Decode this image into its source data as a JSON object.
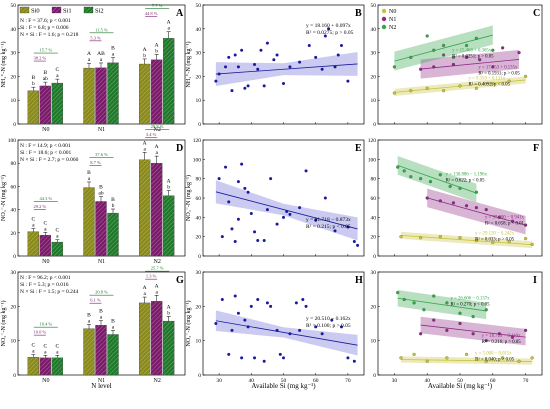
{
  "colors": {
    "Si0": "#8a8a1a",
    "Si1": "#7b1a6a",
    "Si2": "#1e7a2a",
    "blue": "#1a1aa0",
    "blueBand": "#b9b9ec",
    "N0": "#c8c23a",
    "N1": "#8e2a86",
    "N2": "#35a64a",
    "frame": "#000000"
  },
  "chart_data": [
    {
      "id": "A",
      "type": "bar",
      "panel": "A",
      "categories": [
        "N0",
        "N1",
        "N2"
      ],
      "series": [
        {
          "name": "Si0",
          "values": [
            14,
            23.5,
            25.2
          ]
        },
        {
          "name": "Si1",
          "values": [
            16,
            23.6,
            27
          ]
        },
        {
          "name": "Si2",
          "values": [
            17.2,
            25.7,
            36
          ]
        }
      ],
      "ylabel": "NH₄⁺-N (mg kg⁻¹)",
      "ylim": [
        0,
        50
      ],
      "yticks": [
        "0",
        "10",
        "20",
        "30",
        "40",
        "50"
      ],
      "stats": [
        "N : F = 37.6; p < 0.001",
        "Si : F = 6.8; p = 0.006",
        "N × Si : F = 1.6; p = 0.218"
      ],
      "letters": [
        [
          "B\nb",
          "B\nab",
          "C\na"
        ],
        [
          "A\na",
          "AB\na",
          "B\na"
        ],
        [
          "A\nb",
          "A\nb",
          "A\na"
        ]
      ],
      "pct": [
        "38.2 %",
        "15.7 %",
        "5.3 %",
        "11.5 %",
        "44.8 %",
        "7.7 %"
      ]
    },
    {
      "id": "D",
      "type": "bar",
      "panel": "D",
      "categories": [
        "N0",
        "N1",
        "N2"
      ],
      "series": [
        {
          "name": "Si0",
          "values": [
            21,
            59,
            83
          ]
        },
        {
          "name": "Si1",
          "values": [
            18,
            47,
            80
          ]
        },
        {
          "name": "Si2",
          "values": [
            12,
            37,
            52
          ]
        }
      ],
      "ylabel": "NO₃⁻-N (mg kg⁻¹)",
      "ylim": [
        0,
        100
      ],
      "yticks": [
        "0",
        "20",
        "40",
        "60",
        "80",
        "100"
      ],
      "stats": [
        "N : F = 14.9; p < 0.001",
        "Si : F = 18.6; p < 0.001",
        "N × Si : F = 2.7; p = 0.060"
      ],
      "letters": [
        [
          "C\na",
          "C\na",
          "C\na"
        ],
        [
          "B\na",
          "B\nab",
          "B\nb"
        ],
        [
          "A\na",
          "A\na",
          "A\nb"
        ]
      ],
      "pct": [
        "29.2 %",
        "44.3 %",
        "8.7 %",
        "37.6 %",
        "3.4 %",
        "29.8 %"
      ]
    },
    {
      "id": "G",
      "type": "bar",
      "panel": "G",
      "categories": [
        "N0",
        "N1",
        "N2"
      ],
      "series": [
        {
          "name": "Si0",
          "values": [
            5.2,
            13.5,
            21
          ]
        },
        {
          "name": "Si1",
          "values": [
            5.0,
            14.5,
            21.5
          ]
        },
        {
          "name": "Si2",
          "values": [
            5.0,
            11.8,
            15.7
          ]
        }
      ],
      "ylabel": "NO₂⁻-N (mg kg⁻¹)",
      "ylim": [
        0,
        30
      ],
      "yticks": [
        "0",
        "10",
        "20",
        "30"
      ],
      "stats": [
        "N : F = 96.2; p < 0.001",
        "Si : F = 5.3; p = 0.016",
        "N × Si : F = 1.5; p = 0.244"
      ],
      "letters": [
        [
          "C\na",
          "C\na",
          "C\na"
        ],
        [
          "B\na",
          "B\na",
          "B\na"
        ],
        [
          "A\na",
          "A\na",
          "A\nb"
        ]
      ],
      "pct": [
        "10.0 %",
        "10.4 %",
        "6.1 %",
        "20.8 %",
        "1.3 %",
        "25.7 %"
      ]
    },
    {
      "id": "B",
      "type": "scatter",
      "panel": "B",
      "xlim": [
        25,
        75
      ],
      "ylim": [
        0,
        50
      ],
      "xticks": [
        "30",
        "40",
        "50",
        "60",
        "70"
      ],
      "yticks": [
        "0",
        "10",
        "20",
        "30",
        "40",
        "50"
      ],
      "ylabel": "NH₄⁺-N (mg kg⁻¹)",
      "eq": "y = 18.160 + 0.097x",
      "r2": "R² = 0.0275; p > 0.05",
      "line": [
        18.16,
        0.097
      ],
      "points": [
        [
          29,
          18
        ],
        [
          30,
          21
        ],
        [
          32,
          24
        ],
        [
          33,
          28
        ],
        [
          34,
          14
        ],
        [
          35,
          29
        ],
        [
          36,
          24
        ],
        [
          37,
          31
        ],
        [
          38,
          15
        ],
        [
          39,
          16
        ],
        [
          41,
          25
        ],
        [
          42,
          23
        ],
        [
          43,
          31
        ],
        [
          44,
          16
        ],
        [
          45,
          34
        ],
        [
          47,
          27
        ],
        [
          48,
          29
        ],
        [
          50,
          17
        ],
        [
          52,
          24
        ],
        [
          55,
          26
        ],
        [
          58,
          33
        ],
        [
          60,
          28
        ],
        [
          62,
          23
        ],
        [
          63,
          37
        ],
        [
          64,
          40
        ],
        [
          66,
          24
        ],
        [
          67,
          29
        ],
        [
          68,
          33
        ],
        [
          70,
          18
        ]
      ]
    },
    {
      "id": "E",
      "type": "scatter",
      "panel": "E",
      "xlim": [
        25,
        75
      ],
      "ylim": [
        0,
        120
      ],
      "xticks": [
        "30",
        "40",
        "50",
        "60",
        "70"
      ],
      "yticks": [
        "0",
        "20",
        "40",
        "60",
        "80",
        "100",
        "120"
      ],
      "ylabel": "NO₃⁻-N (mg kg⁻¹)",
      "eq": "y = 91.718 − 0.873x",
      "r2": "R² = 0.215; p < 0.05",
      "line": [
        91.718,
        -0.873
      ],
      "points": [
        [
          30,
          80
        ],
        [
          31,
          20
        ],
        [
          32,
          92
        ],
        [
          33,
          56
        ],
        [
          34,
          28
        ],
        [
          35,
          15
        ],
        [
          36,
          77
        ],
        [
          37,
          95
        ],
        [
          38,
          70
        ],
        [
          39,
          66
        ],
        [
          40,
          44
        ],
        [
          41,
          25
        ],
        [
          42,
          16
        ],
        [
          44,
          16
        ],
        [
          45,
          48
        ],
        [
          46,
          80
        ],
        [
          48,
          33
        ],
        [
          50,
          40
        ],
        [
          51,
          46
        ],
        [
          52,
          43
        ],
        [
          55,
          50
        ],
        [
          57,
          88
        ],
        [
          60,
          37
        ],
        [
          63,
          60
        ],
        [
          66,
          26
        ],
        [
          70,
          30
        ],
        [
          72,
          15
        ],
        [
          73,
          11
        ],
        [
          36,
          38
        ]
      ]
    },
    {
      "id": "H",
      "type": "scatter",
      "panel": "H",
      "xlim": [
        25,
        75
      ],
      "ylim": [
        0,
        30
      ],
      "xticks": [
        "30",
        "40",
        "50",
        "60",
        "70"
      ],
      "yticks": [
        "0",
        "10",
        "20",
        "30"
      ],
      "ylabel": "NO₂⁻-N (mg kg⁻¹)",
      "xlabel": "Available Si (mg kg⁻¹)",
      "eq": "y = 20.510 − 0.162x",
      "r2": "R² = 0.100; p > 0.05",
      "line": [
        20.51,
        -0.162
      ],
      "points": [
        [
          29,
          15
        ],
        [
          31,
          22
        ],
        [
          33,
          6
        ],
        [
          34,
          13
        ],
        [
          35,
          23
        ],
        [
          36,
          18
        ],
        [
          37,
          5
        ],
        [
          38,
          16
        ],
        [
          39,
          14
        ],
        [
          40,
          20
        ],
        [
          41,
          5
        ],
        [
          42,
          22
        ],
        [
          44,
          4
        ],
        [
          45,
          21
        ],
        [
          46,
          20
        ],
        [
          48,
          13
        ],
        [
          49,
          6
        ],
        [
          50,
          5
        ],
        [
          52,
          12
        ],
        [
          54,
          21
        ],
        [
          55,
          13
        ],
        [
          57,
          20
        ],
        [
          60,
          14
        ],
        [
          62,
          12
        ],
        [
          65,
          16
        ],
        [
          68,
          14
        ],
        [
          70,
          5
        ],
        [
          72,
          4
        ],
        [
          56,
          22
        ]
      ]
    },
    {
      "id": "C",
      "type": "scatter",
      "panel": "C",
      "xlim": [
        25,
        75
      ],
      "ylim": [
        0,
        50
      ],
      "xticks": [
        "30",
        "40",
        "50",
        "60",
        "70"
      ],
      "yticks": [
        "0",
        "10",
        "20",
        "30",
        "40",
        "50"
      ],
      "legend": [
        "N0",
        "N1",
        "N2"
      ],
      "xlabel": "",
      "groups": [
        {
          "name": "N0",
          "eq": "y = 9.350 + 0.131x",
          "r2": "R² = 0.4092; p < 0.05",
          "line": [
            9.35,
            0.131
          ],
          "points": [
            [
              30,
              13
            ],
            [
              35,
              14
            ],
            [
              40,
              15
            ],
            [
              45,
              14
            ],
            [
              50,
              16
            ],
            [
              55,
              15
            ],
            [
              60,
              17
            ],
            [
              65,
              18
            ],
            [
              70,
              20
            ]
          ]
        },
        {
          "name": "N1",
          "eq": "y = 17.953 + 0.135x",
          "r2": "R² = 0.1931; p > 0.05",
          "line": [
            17.953,
            0.135
          ],
          "points": [
            [
              38,
              23
            ],
            [
              42,
              24
            ],
            [
              45,
              29
            ],
            [
              48,
              25
            ],
            [
              52,
              28
            ],
            [
              56,
              27
            ],
            [
              60,
              24
            ],
            [
              63,
              32
            ],
            [
              68,
              30
            ]
          ]
        },
        {
          "name": "N2",
          "eq": "y = 15.468 + 0.365x",
          "r2": "R² = 0.0251; p > 0.05",
          "line": [
            15.468,
            0.365
          ],
          "points": [
            [
              30,
              24
            ],
            [
              35,
              28
            ],
            [
              40,
              37
            ],
            [
              42,
              31
            ],
            [
              45,
              33
            ],
            [
              48,
              28
            ],
            [
              52,
              33
            ],
            [
              55,
              36
            ],
            [
              60,
              31
            ]
          ]
        }
      ]
    },
    {
      "id": "F",
      "type": "scatter",
      "panel": "F",
      "xlim": [
        25,
        75
      ],
      "ylim": [
        0,
        120
      ],
      "xticks": [
        "30",
        "40",
        "50",
        "60",
        "70"
      ],
      "yticks": [
        "0",
        "20",
        "40",
        "60",
        "80",
        "100",
        "120"
      ],
      "groups": [
        {
          "name": "N2",
          "eq": "y = 130.886 − 1.196x",
          "r2": "R² = 0.622; p < 0.05",
          "line": [
            130.886,
            -1.196
          ],
          "points": [
            [
              31,
              92
            ],
            [
              33,
              88
            ],
            [
              35,
              82
            ],
            [
              38,
              80
            ],
            [
              41,
              77
            ],
            [
              44,
              84
            ],
            [
              47,
              72
            ],
            [
              50,
              70
            ],
            [
              55,
              66
            ]
          ]
        },
        {
          "name": "N1",
          "eq": "y = 97.800 − 0.941x",
          "r2": "R² = 0.658; p < 0.01",
          "line": [
            97.8,
            -0.941
          ],
          "points": [
            [
              40,
              60
            ],
            [
              44,
              57
            ],
            [
              48,
              55
            ],
            [
              52,
              52
            ],
            [
              55,
              50
            ],
            [
              58,
              48
            ],
            [
              62,
              40
            ],
            [
              66,
              36
            ],
            [
              70,
              32
            ]
          ]
        },
        {
          "name": "N0",
          "eq": "y = 29.120 − 0.242x",
          "r2": "R² = 0.033; p > 0.05",
          "line": [
            29.12,
            -0.242
          ],
          "points": [
            [
              32,
              20
            ],
            [
              38,
              19
            ],
            [
              44,
              20
            ],
            [
              50,
              19
            ],
            [
              55,
              16
            ],
            [
              60,
              14
            ],
            [
              65,
              15
            ],
            [
              70,
              18
            ],
            [
              72,
              12
            ]
          ]
        }
      ]
    },
    {
      "id": "I",
      "type": "scatter",
      "panel": "I",
      "xlim": [
        25,
        75
      ],
      "ylim": [
        0,
        30
      ],
      "xticks": [
        "30",
        "40",
        "50",
        "60",
        "70"
      ],
      "yticks": [
        "0",
        "10",
        "20",
        "30"
      ],
      "xlabel": "Available Si (mg kg⁻¹)",
      "groups": [
        {
          "name": "N2",
          "eq": "y = 26.606 − 0.137x",
          "r2": "R² = 0.270; p < 0.05",
          "line": [
            26.606,
            -0.137
          ],
          "points": [
            [
              31,
              24
            ],
            [
              33,
              22
            ],
            [
              36,
              21
            ],
            [
              39,
              19
            ],
            [
              42,
              23
            ],
            [
              46,
              21
            ],
            [
              50,
              18
            ],
            [
              54,
              17
            ],
            [
              58,
              19
            ]
          ]
        },
        {
          "name": "N1",
          "eq": "y = 18.729 − 0.110x",
          "r2": "R² = 0.216; p > 0.05",
          "line": [
            18.729,
            -0.11
          ],
          "points": [
            [
              38,
              12
            ],
            [
              42,
              16
            ],
            [
              46,
              13
            ],
            [
              50,
              15
            ],
            [
              54,
              12
            ],
            [
              58,
              10
            ],
            [
              62,
              12
            ],
            [
              66,
              11
            ],
            [
              70,
              13
            ]
          ]
        },
        {
          "name": "N0",
          "eq": "y = 5.000 − 0.015x",
          "r2": "R² = 0.040; p > 0.05",
          "line": [
            5.0,
            -0.015
          ],
          "points": [
            [
              32,
              5
            ],
            [
              36,
              6
            ],
            [
              40,
              4
            ],
            [
              46,
              5
            ],
            [
              52,
              6
            ],
            [
              58,
              4
            ],
            [
              63,
              5
            ],
            [
              68,
              4
            ],
            [
              72,
              5
            ]
          ]
        }
      ]
    }
  ],
  "labels": {
    "xlabel_bar": "N level",
    "xlabel_scatter": "Available Si (mg kg⁻¹)",
    "legend_bar": [
      "Si0",
      "Si1",
      "Si2"
    ],
    "legend_scatter": [
      "N0",
      "N1",
      "N2"
    ]
  }
}
